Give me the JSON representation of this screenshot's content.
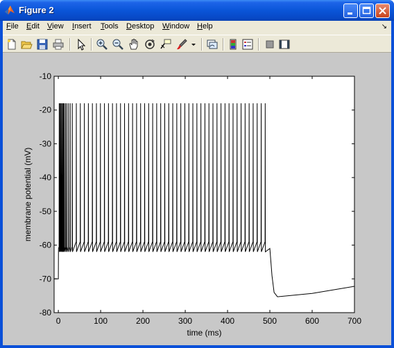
{
  "window": {
    "title": "Figure 2",
    "icon": "matlab-logo-icon"
  },
  "title_buttons": [
    "minimize-icon",
    "maximize-icon",
    "close-icon"
  ],
  "menu": [
    "File",
    "Edit",
    "View",
    "Insert",
    "Tools",
    "Desktop",
    "Window",
    "Help"
  ],
  "toolbar": [
    "new-figure-icon",
    "open-file-icon",
    "save-icon",
    "print-icon",
    "select-arrow-icon",
    "zoom-in-icon",
    "zoom-out-icon",
    "pan-hand-icon",
    "rotate-3d-icon",
    "data-cursor-icon",
    "brush-icon",
    "brush-dropdown-icon",
    "link-plot-icon",
    "colorbar-icon",
    "legend-icon",
    "hide-plot-tools-icon",
    "show-plot-tools-icon"
  ],
  "colors": {
    "titlebar": "#0a55d8",
    "chrome": "#ece9d8",
    "figure_bg": "#c8c8c8",
    "axes_bg": "#ffffff",
    "trace": "#000000"
  },
  "chart_data": {
    "type": "line",
    "title": "",
    "xlabel": "time (ms)",
    "ylabel": "membrane potential (mV)",
    "xlim": [
      -10,
      700
    ],
    "ylim": [
      -80,
      -10
    ],
    "xticks": [
      0,
      100,
      200,
      300,
      400,
      500,
      600,
      700
    ],
    "yticks": [
      -80,
      -70,
      -60,
      -50,
      -40,
      -30,
      -20,
      -10
    ],
    "grid": false,
    "series": [
      {
        "resting_potential_mV": -70,
        "stimulus_on_ms": 0,
        "stimulus_off_ms": 500,
        "spike_peak_mV": -18,
        "spike_trough_mV": -62,
        "interspike_baseline_mV": -59,
        "initial_spike_times_ms": [
          2,
          4,
          6,
          8,
          10,
          12,
          14,
          17,
          20,
          24,
          28,
          33
        ],
        "regular_spike_interval_ms": 9.5,
        "last_spike_ms": 496,
        "after_hyperpolarization": [
          [
            500,
            -61
          ],
          [
            505,
            -69
          ],
          [
            510,
            -74
          ],
          [
            518,
            -75.3
          ],
          [
            600,
            -74.3
          ],
          [
            700,
            -72.2
          ]
        ]
      }
    ]
  }
}
